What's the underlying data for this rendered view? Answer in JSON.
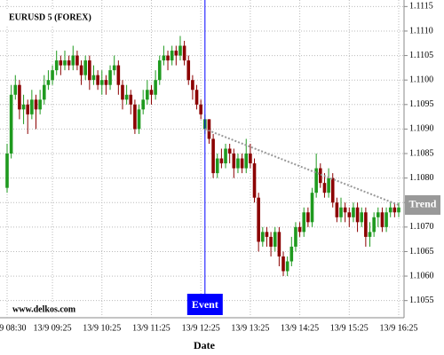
{
  "chart_data": {
    "type": "candlestick",
    "title": "EURUSD 5 (FOREX)",
    "watermark": "www.delkos.com",
    "x_label": "Date",
    "categories": [
      "13/9 08:30",
      null,
      null,
      null,
      null,
      null,
      null,
      null,
      null,
      null,
      null,
      "13/9 09:25",
      null,
      null,
      null,
      null,
      null,
      null,
      null,
      null,
      null,
      null,
      null,
      "13/9 10:25",
      null,
      null,
      null,
      null,
      null,
      null,
      null,
      null,
      null,
      null,
      null,
      "13/9 11:25",
      null,
      null,
      null,
      null,
      null,
      null,
      null,
      null,
      null,
      null,
      null,
      "13/9 12:25",
      null,
      null,
      null,
      null,
      null,
      null,
      null,
      null,
      null,
      null,
      null,
      "13/9 13:25",
      null,
      null,
      null,
      null,
      null,
      null,
      null,
      null,
      null,
      null,
      null,
      "13/9 14:25",
      null,
      null,
      null,
      null,
      null,
      null,
      null,
      null,
      null,
      null,
      null,
      "13/9 15:25",
      null,
      null,
      null,
      null,
      null,
      null,
      null,
      null,
      null,
      null,
      null,
      "13/9 16:25"
    ],
    "open": [
      1.1078,
      1.1085,
      1.1097,
      1.1099,
      1.1094,
      1.1095,
      1.1093,
      1.1096,
      1.1094,
      1.1096,
      1.1099,
      1.11,
      1.1102,
      1.1104,
      1.1103,
      1.1104,
      1.1103,
      1.1105,
      1.1103,
      1.1101,
      1.1104,
      1.11,
      1.1101,
      1.1099,
      1.11,
      1.1099,
      1.1102,
      1.1103,
      1.1099,
      1.1096,
      1.1097,
      1.1095,
      1.109,
      1.1094,
      1.1096,
      1.1098,
      1.1097,
      1.11,
      1.1104,
      1.1105,
      1.1104,
      1.1106,
      1.1105,
      1.1107,
      1.1104,
      1.11,
      1.1098,
      1.1095,
      1.109,
      1.1092,
      1.1088,
      1.1081,
      1.1084,
      1.1083,
      1.1086,
      1.1085,
      1.1082,
      1.1084,
      1.1082,
      1.1085,
      1.1083,
      1.1076,
      1.1067,
      1.1069,
      1.1068,
      1.1066,
      1.1069,
      1.1064,
      1.1061,
      1.1063,
      1.1066,
      1.107,
      1.1069,
      1.1073,
      1.1071,
      1.1077,
      1.1082,
      1.1079,
      1.1077,
      1.108,
      1.1075,
      1.1072,
      1.1074,
      1.1073,
      1.1072,
      1.1074,
      1.1071,
      1.1073,
      1.1068,
      1.1069,
      1.1072,
      1.1073,
      1.107,
      1.1073,
      1.1074,
      1.1073
    ],
    "high": [
      1.1087,
      1.1099,
      1.1101,
      1.11,
      1.1097,
      1.1096,
      1.1098,
      1.1097,
      1.1098,
      1.1101,
      1.1102,
      1.1103,
      1.1106,
      1.1105,
      1.1106,
      1.1105,
      1.1107,
      1.1106,
      1.1104,
      1.1105,
      1.1105,
      1.1103,
      1.1102,
      1.1102,
      1.1101,
      1.1103,
      1.1105,
      1.1104,
      1.11,
      1.1099,
      1.1098,
      1.1096,
      1.1095,
      1.1098,
      1.11,
      1.1099,
      1.1102,
      1.1105,
      1.1107,
      1.1106,
      1.1107,
      1.1107,
      1.1109,
      1.1108,
      1.1105,
      1.1101,
      1.1099,
      1.1096,
      1.1093,
      1.1092,
      1.1089,
      1.1085,
      1.1086,
      1.1087,
      1.1087,
      1.1086,
      1.1085,
      1.1085,
      1.1088,
      1.1087,
      1.1084,
      1.1077,
      1.107,
      1.107,
      1.1069,
      1.107,
      1.107,
      1.1065,
      1.1064,
      1.1068,
      1.1071,
      1.1071,
      1.1074,
      1.1074,
      1.1078,
      1.1085,
      1.1083,
      1.1081,
      1.1082,
      1.1081,
      1.1076,
      1.1076,
      1.1075,
      1.1074,
      1.1075,
      1.1075,
      1.1074,
      1.1074,
      1.1071,
      1.1073,
      1.1074,
      1.1074,
      1.1074,
      1.1075,
      1.1075,
      1.1075
    ],
    "low": [
      1.1077,
      1.1084,
      1.1096,
      1.1092,
      1.1091,
      1.1089,
      1.1092,
      1.109,
      1.1093,
      1.1095,
      1.1098,
      1.1099,
      1.1101,
      1.1101,
      1.1102,
      1.1102,
      1.1102,
      1.1102,
      1.1099,
      1.11,
      1.1098,
      1.1099,
      1.1098,
      1.1097,
      1.1097,
      1.1098,
      1.1101,
      1.1097,
      1.1094,
      1.1095,
      1.1093,
      1.1089,
      1.1089,
      1.1093,
      1.1095,
      1.1095,
      1.1096,
      1.1099,
      1.1103,
      1.1102,
      1.1103,
      1.1103,
      1.1104,
      1.1103,
      1.1099,
      1.1096,
      1.1094,
      1.1092,
      1.1089,
      1.1087,
      1.108,
      1.108,
      1.1082,
      1.1082,
      1.1083,
      1.108,
      1.1081,
      1.1081,
      1.1081,
      1.1082,
      1.1075,
      1.1065,
      1.1066,
      1.1066,
      1.1064,
      1.1065,
      1.1062,
      1.106,
      1.106,
      1.1062,
      1.1065,
      1.1068,
      1.1068,
      1.107,
      1.107,
      1.1076,
      1.1078,
      1.1076,
      1.1076,
      1.1074,
      1.1071,
      1.1071,
      1.1071,
      1.107,
      1.1071,
      1.1069,
      1.107,
      1.1066,
      1.1066,
      1.1068,
      1.107,
      1.1069,
      1.1069,
      1.1072,
      1.1072,
      1.1072
    ],
    "close": [
      1.1085,
      1.1097,
      1.1099,
      1.1094,
      1.1095,
      1.1093,
      1.1096,
      1.1094,
      1.1096,
      1.1099,
      1.11,
      1.1102,
      1.1104,
      1.1103,
      1.1104,
      1.1103,
      1.1105,
      1.1103,
      1.1101,
      1.1104,
      1.11,
      1.1101,
      1.1099,
      1.11,
      1.1099,
      1.1102,
      1.1103,
      1.1099,
      1.1096,
      1.1097,
      1.1095,
      1.109,
      1.1094,
      1.1096,
      1.1098,
      1.1097,
      1.11,
      1.1104,
      1.1105,
      1.1104,
      1.1106,
      1.1105,
      1.1107,
      1.1104,
      1.11,
      1.1098,
      1.1095,
      1.1093,
      1.1092,
      1.1088,
      1.1081,
      1.1084,
      1.1083,
      1.1086,
      1.1085,
      1.1082,
      1.1084,
      1.1082,
      1.1085,
      1.1083,
      1.1076,
      1.1067,
      1.1069,
      1.1068,
      1.1066,
      1.1069,
      1.1064,
      1.1061,
      1.1063,
      1.1066,
      1.107,
      1.1069,
      1.1073,
      1.1071,
      1.1077,
      1.1082,
      1.1079,
      1.1077,
      1.108,
      1.1075,
      1.1072,
      1.1074,
      1.1073,
      1.1072,
      1.1074,
      1.1071,
      1.1073,
      1.1068,
      1.1069,
      1.1072,
      1.1073,
      1.107,
      1.1073,
      1.1074,
      1.1073,
      1.1074
    ],
    "up_color": "#1f9a1f",
    "down_color": "#8b0000",
    "ylim": [
      1.10515,
      1.11155
    ],
    "yticks": [
      1.1055,
      {
        "value": 1.106,
        "label": "1.1060"
      },
      1.1065,
      {
        "value": 1.107,
        "label": "1.1070"
      },
      1.1075,
      {
        "value": 1.108,
        "label": "1.1080"
      },
      1.1085,
      {
        "value": 1.109,
        "label": "1.1090"
      },
      1.1095,
      {
        "value": 1.11,
        "label": "1.1100"
      },
      1.1105,
      {
        "value": 1.111,
        "label": "1.1110"
      },
      1.1115
    ],
    "grid": true,
    "event": {
      "label": "Event",
      "x": 48,
      "color": "#0000ff"
    },
    "trend": {
      "label": "Trend",
      "x": [
        48,
        95
      ],
      "y": [
        1.109,
        1.10745
      ],
      "color": "#999999"
    }
  }
}
